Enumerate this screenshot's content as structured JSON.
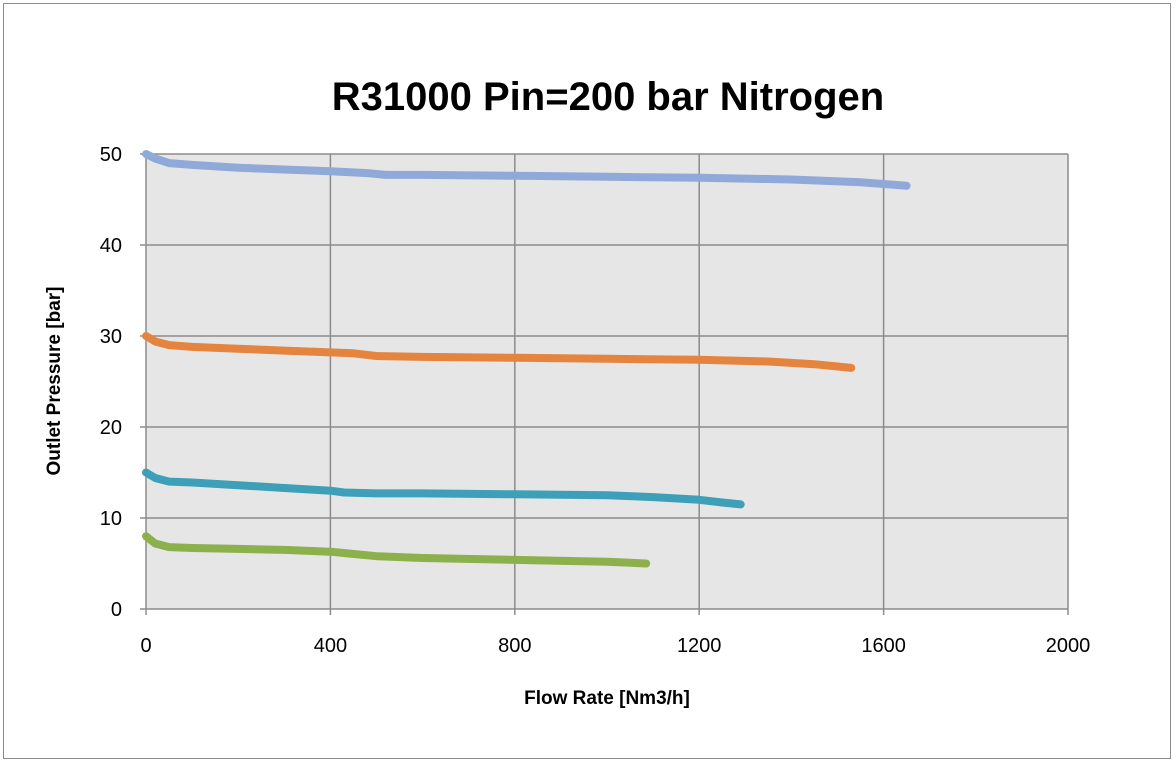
{
  "chart_data": {
    "type": "line",
    "title": "R31000  Pin=200 bar  Nitrogen",
    "xlabel": "Flow Rate [Nm3/h]",
    "ylabel": "Outlet Pressure [bar]",
    "xlim": [
      0,
      2000
    ],
    "ylim": [
      0,
      50
    ],
    "xticks": [
      0,
      400,
      800,
      1200,
      1600,
      2000
    ],
    "yticks": [
      0,
      10,
      20,
      30,
      40,
      50
    ],
    "grid": true,
    "legend": "none",
    "series": [
      {
        "color": "#8fa9d8",
        "points": [
          [
            0,
            50
          ],
          [
            20,
            49.5
          ],
          [
            50,
            49
          ],
          [
            100,
            48.8
          ],
          [
            200,
            48.5
          ],
          [
            300,
            48.3
          ],
          [
            400,
            48.1
          ],
          [
            480,
            47.9
          ],
          [
            520,
            47.7
          ],
          [
            600,
            47.7
          ],
          [
            800,
            47.6
          ],
          [
            1000,
            47.5
          ],
          [
            1200,
            47.4
          ],
          [
            1400,
            47.2
          ],
          [
            1550,
            46.9
          ],
          [
            1650,
            46.5
          ]
        ]
      },
      {
        "color": "#e5843f",
        "points": [
          [
            0,
            30
          ],
          [
            20,
            29.4
          ],
          [
            50,
            29
          ],
          [
            100,
            28.8
          ],
          [
            200,
            28.6
          ],
          [
            300,
            28.4
          ],
          [
            400,
            28.2
          ],
          [
            450,
            28.1
          ],
          [
            500,
            27.8
          ],
          [
            600,
            27.7
          ],
          [
            800,
            27.6
          ],
          [
            1000,
            27.5
          ],
          [
            1200,
            27.4
          ],
          [
            1350,
            27.2
          ],
          [
            1450,
            26.9
          ],
          [
            1530,
            26.5
          ]
        ]
      },
      {
        "color": "#3da0b8",
        "points": [
          [
            0,
            15
          ],
          [
            20,
            14.4
          ],
          [
            50,
            14
          ],
          [
            100,
            13.9
          ],
          [
            200,
            13.6
          ],
          [
            300,
            13.3
          ],
          [
            400,
            13
          ],
          [
            430,
            12.8
          ],
          [
            500,
            12.7
          ],
          [
            600,
            12.7
          ],
          [
            800,
            12.6
          ],
          [
            1000,
            12.5
          ],
          [
            1100,
            12.3
          ],
          [
            1200,
            12
          ],
          [
            1250,
            11.7
          ],
          [
            1290,
            11.5
          ]
        ]
      },
      {
        "color": "#8cb04c",
        "points": [
          [
            0,
            8
          ],
          [
            20,
            7.2
          ],
          [
            50,
            6.8
          ],
          [
            100,
            6.7
          ],
          [
            200,
            6.6
          ],
          [
            300,
            6.5
          ],
          [
            400,
            6.3
          ],
          [
            440,
            6.1
          ],
          [
            500,
            5.8
          ],
          [
            600,
            5.6
          ],
          [
            800,
            5.4
          ],
          [
            1000,
            5.2
          ],
          [
            1085,
            5
          ]
        ]
      }
    ]
  }
}
